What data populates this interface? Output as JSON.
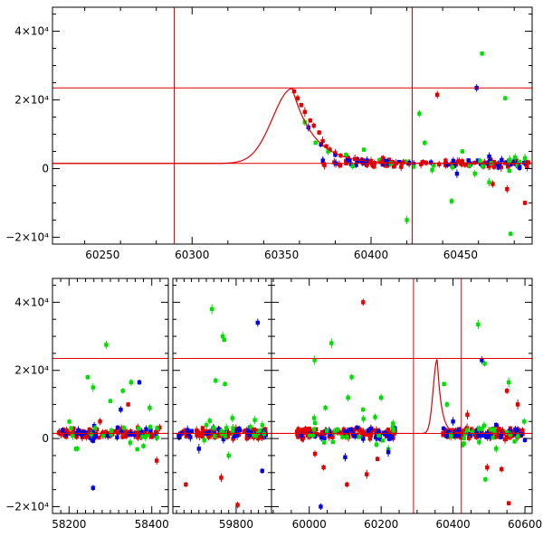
{
  "chart_data": [
    {
      "type": "scatter",
      "title": "",
      "xlabel": "",
      "ylabel": "",
      "xlim": [
        60222,
        60490
      ],
      "ylim": [
        -22000,
        47000
      ],
      "xticks": [
        {
          "value": 60250,
          "label": "60250"
        },
        {
          "value": 60300,
          "label": "60300"
        },
        {
          "value": 60350,
          "label": "60350"
        },
        {
          "value": 60400,
          "label": "60400"
        },
        {
          "value": 60450,
          "label": "60450"
        }
      ],
      "yticks": [
        {
          "value": -20000,
          "label": "−2×10⁴"
        },
        {
          "value": 0,
          "label": "0"
        },
        {
          "value": 20000,
          "label": "2×10⁴"
        },
        {
          "value": 40000,
          "label": "4×10⁴"
        }
      ],
      "reference_lines": {
        "vertical": [
          60290,
          60423
        ],
        "horizontal": [
          23500,
          1500
        ]
      },
      "model_curve": {
        "peak_x": 60356,
        "peak_y": 23300,
        "baseline_y": 1500,
        "color": "#e00000"
      },
      "baseline_scatter": [
        {
          "color": "#e00000",
          "x_range": [
            60372,
            60490
          ],
          "count": 70,
          "spread": 1300
        },
        {
          "color": "#0000e0",
          "x_range": [
            60372,
            60490
          ],
          "count": 35,
          "spread": 1500
        },
        {
          "color": "#00e000",
          "x_range": [
            60380,
            60490
          ],
          "count": 18,
          "spread": 2200
        }
      ],
      "series": [
        {
          "color": "#e00000",
          "points": [
            [
              60357,
              22500
            ],
            [
              60359,
              20500
            ],
            [
              60361,
              18500
            ],
            [
              60363,
              16500
            ],
            [
              60366,
              14000
            ],
            [
              60368,
              12500
            ],
            [
              60371,
              10500
            ],
            [
              60373,
              8000
            ],
            [
              60375,
              6500
            ],
            [
              60377,
              5500
            ],
            [
              60380,
              4500
            ],
            [
              60383,
              3800
            ],
            [
              60387,
              3200
            ],
            [
              60391,
              2800
            ],
            [
              60395,
              2500
            ],
            [
              60400,
              2200
            ],
            [
              60406,
              2000
            ],
            [
              60412,
              1900
            ],
            [
              60418,
              1800
            ],
            [
              60437,
              21500
            ],
            [
              60486,
              -10000
            ],
            [
              60476,
              -6000
            ],
            [
              60468,
              -4500
            ],
            [
              60374,
              1000
            ]
          ]
        },
        {
          "color": "#0000e0",
          "points": [
            [
              60365,
              12000
            ],
            [
              60372,
              7000
            ],
            [
              60380,
              4000
            ],
            [
              60387,
              2500
            ],
            [
              60395,
              2000
            ],
            [
              60410,
              1500
            ],
            [
              60459,
              23500
            ],
            [
              60466,
              3500
            ],
            [
              60473,
              2500
            ],
            [
              60483,
              500
            ],
            [
              60448,
              -1500
            ],
            [
              60471,
              1000
            ]
          ]
        },
        {
          "color": "#00e000",
          "points": [
            [
              60363,
              13500
            ],
            [
              60369,
              7500
            ],
            [
              60376,
              5000
            ],
            [
              60386,
              4000
            ],
            [
              60396,
              5500
            ],
            [
              60411,
              1500
            ],
            [
              60427,
              16000
            ],
            [
              60430,
              7500
            ],
            [
              60420,
              -15000
            ],
            [
              60451,
              5000
            ],
            [
              60462,
              33500
            ],
            [
              60475,
              20500
            ],
            [
              60478,
              -19000
            ],
            [
              60458,
              -1500
            ],
            [
              60445,
              -9500
            ],
            [
              60466,
              -4000
            ],
            [
              60486,
              3000
            ]
          ]
        }
      ]
    },
    {
      "type": "scatter",
      "title": "",
      "xlabel": "",
      "ylabel": "",
      "ylim": [
        -22000,
        47000
      ],
      "segments": [
        {
          "xlim": [
            58160,
            58440
          ],
          "data_range": [
            58175,
            58420
          ]
        },
        {
          "xlim": [
            59630,
            59895
          ],
          "data_range": [
            59645,
            59880
          ]
        },
        {
          "xlim": [
            59895,
            60620
          ],
          "data_range": [
            59965,
            60600
          ]
        }
      ],
      "xticks": [
        {
          "value": 58200,
          "label": "58200"
        },
        {
          "value": 58400,
          "label": "58400"
        },
        {
          "value": 59800,
          "label": "59800"
        },
        {
          "value": 60000,
          "label": "60000"
        },
        {
          "value": 60200,
          "label": "60200"
        },
        {
          "value": 60400,
          "label": "60400"
        },
        {
          "value": 60600,
          "label": "60600"
        }
      ],
      "yticks": [
        {
          "value": -20000,
          "label": "−2×10⁴"
        },
        {
          "value": 0,
          "label": "0"
        },
        {
          "value": 20000,
          "label": "2×10⁴"
        },
        {
          "value": 40000,
          "label": "4×10⁴"
        }
      ],
      "reference_lines": {
        "vertical": [
          60290,
          60423
        ],
        "horizontal": [
          23500,
          1500
        ]
      },
      "model_curve": {
        "peak_x": 60356,
        "peak_y": 23300,
        "baseline_y": 1500,
        "color": "#e00000"
      },
      "baseline_scatter": [
        {
          "color": "#e00000",
          "x_range": [
            58175,
            58420
          ],
          "count": 90,
          "spread": 1500
        },
        {
          "color": "#0000e0",
          "x_range": [
            58175,
            58420
          ],
          "count": 30,
          "spread": 1800
        },
        {
          "color": "#00e000",
          "x_range": [
            58200,
            58420
          ],
          "count": 20,
          "spread": 4000
        },
        {
          "color": "#e00000",
          "x_range": [
            59645,
            59880
          ],
          "count": 90,
          "spread": 1600
        },
        {
          "color": "#0000e0",
          "x_range": [
            59645,
            59880
          ],
          "count": 30,
          "spread": 1800
        },
        {
          "color": "#00e000",
          "x_range": [
            59700,
            59880
          ],
          "count": 20,
          "spread": 4000
        },
        {
          "color": "#e00000",
          "x_range": [
            59965,
            60240
          ],
          "count": 110,
          "spread": 1800
        },
        {
          "color": "#0000e0",
          "x_range": [
            59965,
            60240
          ],
          "count": 35,
          "spread": 2000
        },
        {
          "color": "#00e000",
          "x_range": [
            60000,
            60240
          ],
          "count": 25,
          "spread": 4500
        },
        {
          "color": "#e00000",
          "x_range": [
            60372,
            60600
          ],
          "count": 100,
          "spread": 1500
        },
        {
          "color": "#0000e0",
          "x_range": [
            60372,
            60600
          ],
          "count": 35,
          "spread": 1700
        },
        {
          "color": "#00e000",
          "x_range": [
            60380,
            60600
          ],
          "count": 20,
          "spread": 4000
        }
      ],
      "series": [
        {
          "color": "#00e000",
          "points": [
            [
              58290,
              27500
            ],
            [
              58245,
              18000
            ],
            [
              58258,
              15000
            ],
            [
              58300,
              11000
            ],
            [
              58330,
              14000
            ],
            [
              58350,
              16500
            ],
            [
              58395,
              9000
            ],
            [
              58220,
              -3000
            ],
            [
              59735,
              38000
            ],
            [
              59764,
              30000
            ],
            [
              59768,
              29000
            ],
            [
              59745,
              17000
            ],
            [
              59770,
              16000
            ],
            [
              59790,
              6000
            ],
            [
              59780,
              -5000
            ],
            [
              60015,
              23000
            ],
            [
              60062,
              28000
            ],
            [
              60118,
              18000
            ],
            [
              60108,
              12000
            ],
            [
              60045,
              9000
            ],
            [
              60150,
              8500
            ],
            [
              60200,
              12000
            ],
            [
              60375,
              16000
            ],
            [
              60383,
              10000
            ],
            [
              60470,
              33500
            ],
            [
              60488,
              22000
            ],
            [
              60555,
              16500
            ],
            [
              60598,
              5000
            ],
            [
              60520,
              -3000
            ],
            [
              60490,
              -12000
            ]
          ]
        },
        {
          "color": "#0000e0",
          "points": [
            [
              58258,
              -14500
            ],
            [
              58325,
              8500
            ],
            [
              58370,
              16500
            ],
            [
              59858,
              34000
            ],
            [
              59870,
              -9500
            ],
            [
              59700,
              -3000
            ],
            [
              60100,
              -5500
            ],
            [
              60032,
              -20000
            ],
            [
              60220,
              -4000
            ],
            [
              60400,
              5000
            ],
            [
              60480,
              23000
            ],
            [
              60520,
              4000
            ]
          ]
        },
        {
          "color": "#e00000",
          "points": [
            [
              58343,
              10000
            ],
            [
              58275,
              5000
            ],
            [
              58412,
              -6500
            ],
            [
              59665,
              -13500
            ],
            [
              59804,
              -19500
            ],
            [
              59760,
              -11500
            ],
            [
              60150,
              40000
            ],
            [
              60016,
              -4500
            ],
            [
              60040,
              -8500
            ],
            [
              60105,
              -13500
            ],
            [
              60160,
              -10500
            ],
            [
              60190,
              -6000
            ],
            [
              60550,
              14000
            ],
            [
              60580,
              10000
            ],
            [
              60495,
              -8500
            ],
            [
              60535,
              -9000
            ],
            [
              60555,
              -19000
            ],
            [
              60440,
              7000
            ]
          ]
        }
      ]
    }
  ]
}
